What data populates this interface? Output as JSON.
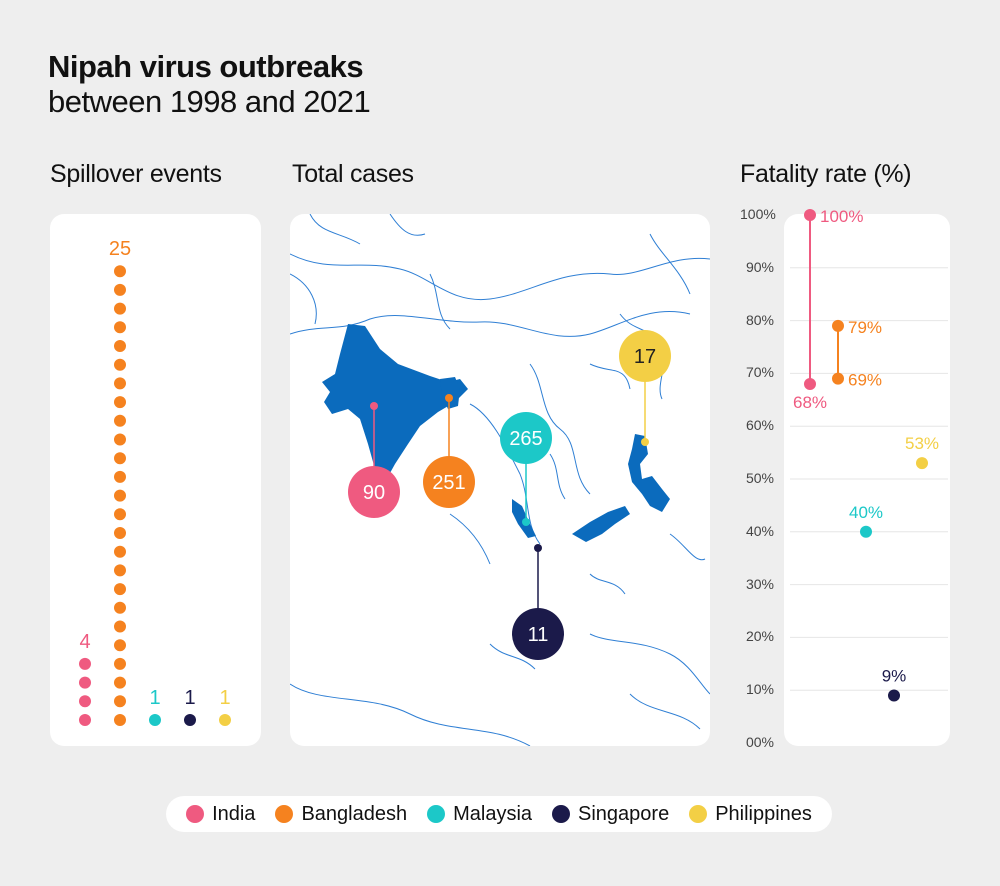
{
  "header": {
    "title": "Nipah virus outbreaks",
    "subtitle": "between 1998 and 2021"
  },
  "panels": {
    "spillover_title": "Spillover events",
    "cases_title": "Total cases",
    "fatality_title": "Fatality rate (%)"
  },
  "colors": {
    "India": "#ef5a80",
    "Bangladesh": "#f5821f",
    "Malaysia": "#1cc8c8",
    "Singapore": "#1b1a4a",
    "Philippines": "#f3cf45",
    "map_land": "#0b6bbd",
    "map_outline": "#2f7fd4"
  },
  "legend": [
    {
      "name": "India",
      "icon": "legend-dot"
    },
    {
      "name": "Bangladesh",
      "icon": "legend-dot"
    },
    {
      "name": "Malaysia",
      "icon": "legend-dot"
    },
    {
      "name": "Singapore",
      "icon": "legend-dot"
    },
    {
      "name": "Philippines",
      "icon": "legend-dot"
    }
  ],
  "chart_data": [
    {
      "type": "bar",
      "title": "Spillover events",
      "categories": [
        "India",
        "Bangladesh",
        "Malaysia",
        "Singapore",
        "Philippines"
      ],
      "values": [
        4,
        25,
        1,
        1,
        1
      ],
      "labels": [
        "4",
        "25",
        "1",
        "1",
        "1"
      ]
    },
    {
      "type": "scatter",
      "title": "Total cases",
      "categories": [
        "India",
        "Bangladesh",
        "Malaysia",
        "Singapore",
        "Philippines"
      ],
      "values": [
        90,
        251,
        265,
        11,
        17
      ],
      "labels": [
        "90",
        "251",
        "265",
        "11",
        "17"
      ]
    },
    {
      "type": "scatter",
      "title": "Fatality rate (%)",
      "ylim": [
        0,
        100
      ],
      "yticks": [
        "100%",
        "90%",
        "80%",
        "70%",
        "60%",
        "50%",
        "40%",
        "30%",
        "20%",
        "10%",
        "00%"
      ],
      "series": [
        {
          "name": "India",
          "values": [
            68,
            100
          ],
          "labels": [
            "68%",
            "100%"
          ]
        },
        {
          "name": "Bangladesh",
          "values": [
            69,
            79
          ],
          "labels": [
            "69%",
            "79%"
          ]
        },
        {
          "name": "Malaysia",
          "values": [
            40
          ],
          "labels": [
            "40%"
          ]
        },
        {
          "name": "Singapore",
          "values": [
            9
          ],
          "labels": [
            "9%"
          ]
        },
        {
          "name": "Philippines",
          "values": [
            53
          ],
          "labels": [
            "53%"
          ]
        }
      ]
    }
  ]
}
